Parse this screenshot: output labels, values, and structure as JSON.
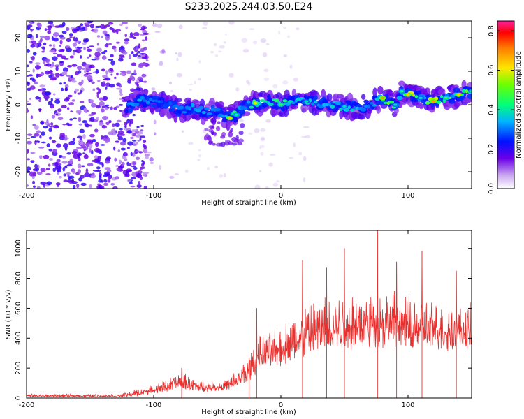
{
  "title": "S233.2025.244.03.50.E24",
  "chart_data": [
    {
      "type": "heatmap",
      "xlabel": "Height of straight line (km)",
      "ylabel": "Frequency (Hz)",
      "xlim": [
        -200,
        150
      ],
      "ylim": [
        -25,
        25
      ],
      "xticks": [
        -200,
        -100,
        0,
        100
      ],
      "xtick_labels": [
        "-200",
        "-100",
        "0",
        "100"
      ],
      "yticks": [
        -20,
        -10,
        0,
        10,
        20
      ],
      "ytick_labels": [
        "-20",
        "-10",
        "0",
        "10",
        "20"
      ],
      "colorbar": {
        "label": "Normalized spectral amplitude",
        "range": [
          0,
          0.85
        ],
        "ticks": [
          0,
          0.2,
          0.4,
          0.6,
          0.8
        ],
        "tick_labels": [
          "0.0",
          "0.2",
          "0.4",
          "0.6",
          "0.8"
        ]
      },
      "noise_region_x": [
        -200,
        -105
      ],
      "ridge": {
        "x": [
          -122,
          -110,
          -100,
          -90,
          -80,
          -70,
          -60,
          -50,
          -45,
          -40,
          -35,
          -30,
          -25,
          -20,
          -10,
          0,
          10,
          20,
          30,
          40,
          50,
          60,
          70,
          80,
          90,
          95,
          100,
          110,
          120,
          130,
          140,
          150
        ],
        "freq": [
          -1,
          1.5,
          1,
          0,
          -1.5,
          -1,
          -2,
          -2,
          -3,
          -4,
          -3,
          -1,
          0,
          0.5,
          1,
          0,
          1.5,
          1,
          0.5,
          0,
          -0.5,
          -1,
          0,
          2,
          0,
          4,
          3,
          2,
          1,
          2,
          3,
          4
        ],
        "peak": [
          0.35,
          0.35,
          0.3,
          0.25,
          0.3,
          0.35,
          0.35,
          0.3,
          0.35,
          0.75,
          0.5,
          0.3,
          0.35,
          0.7,
          0.4,
          0.55,
          0.35,
          0.45,
          0.35,
          0.4,
          0.45,
          0.4,
          0.3,
          0.8,
          0.45,
          0.5,
          0.75,
          0.45,
          0.8,
          0.55,
          0.75,
          0.5
        ]
      }
    },
    {
      "type": "line",
      "xlabel": "Height of straight line (km)",
      "ylabel": "SNR (10 * v/v)",
      "xlim": [
        -200,
        150
      ],
      "ylim": [
        0,
        1120
      ],
      "xticks": [
        -200,
        -100,
        0,
        100
      ],
      "xtick_labels": [
        "-200",
        "-100",
        "0",
        "100"
      ],
      "yticks": [
        0,
        200,
        400,
        600,
        800,
        1000
      ],
      "ytick_labels": [
        "0",
        "200",
        "400",
        "600",
        "800",
        "1000"
      ],
      "color": "#e8302e",
      "envelope": {
        "x": [
          -200,
          -150,
          -125,
          -115,
          -105,
          -100,
          -90,
          -80,
          -75,
          -70,
          -60,
          -50,
          -40,
          -35,
          -30,
          -25,
          -20,
          -18,
          -10,
          0,
          10,
          20,
          30,
          40,
          50,
          60,
          70,
          80,
          90,
          100,
          110,
          120,
          130,
          140,
          150
        ],
        "lo": [
          5,
          5,
          5,
          10,
          20,
          30,
          40,
          55,
          50,
          45,
          40,
          45,
          50,
          60,
          70,
          100,
          150,
          200,
          200,
          210,
          230,
          260,
          290,
          300,
          310,
          320,
          330,
          330,
          330,
          320,
          320,
          320,
          310,
          300,
          300
        ],
        "hi": [
          30,
          28,
          30,
          60,
          80,
          90,
          140,
          180,
          170,
          140,
          120,
          110,
          150,
          200,
          250,
          330,
          380,
          420,
          450,
          500,
          600,
          680,
          700,
          740,
          760,
          760,
          760,
          760,
          740,
          720,
          700,
          680,
          660,
          650,
          640
        ]
      },
      "spikes": [
        {
          "x": -78,
          "y": 200
        },
        {
          "x": -25,
          "y": 270
        },
        {
          "x": -19,
          "y": 600
        },
        {
          "x": 17,
          "y": 920
        },
        {
          "x": 36,
          "y": 870
        },
        {
          "x": 50,
          "y": 1000
        },
        {
          "x": 76,
          "y": 1130
        },
        {
          "x": 91,
          "y": 910
        },
        {
          "x": 111,
          "y": 980
        },
        {
          "x": 138,
          "y": 850
        }
      ]
    }
  ]
}
